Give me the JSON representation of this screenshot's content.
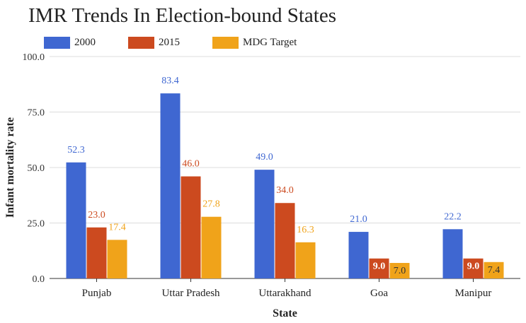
{
  "chart_data": {
    "type": "bar",
    "title": "IMR Trends In Election-bound States",
    "xlabel": "State",
    "ylabel": "Infant mortality rate",
    "ylim": [
      0,
      100
    ],
    "yticks": [
      "0.0",
      "25.0",
      "50.0",
      "75.0",
      "100.0"
    ],
    "grid": true,
    "legend_position": "top-left",
    "categories": [
      "Punjab",
      "Uttar Pradesh",
      "Uttarakhand",
      "Goa",
      "Manipur"
    ],
    "series": [
      {
        "name": "2000",
        "color": "#3f67d1",
        "values": [
          52.3,
          83.4,
          49.0,
          21.0,
          22.2
        ],
        "labels": [
          "52.3",
          "83.4",
          "49.0",
          "21.0",
          "22.2"
        ]
      },
      {
        "name": "2015",
        "color": "#cc4a1f",
        "values": [
          23.0,
          46.0,
          34.0,
          9.0,
          9.0
        ],
        "labels": [
          "23.0",
          "46.0",
          "34.0",
          "9.0",
          "9.0"
        ]
      },
      {
        "name": "MDG Target",
        "color": "#f0a31a",
        "values": [
          17.4,
          27.8,
          16.3,
          7.0,
          7.4
        ],
        "labels": [
          "17.4",
          "27.8",
          "16.3",
          "7.0",
          "7.4"
        ]
      }
    ]
  }
}
